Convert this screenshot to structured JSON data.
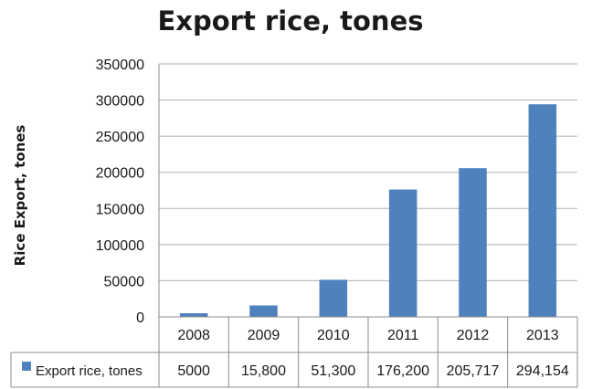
{
  "chart_data": {
    "type": "bar",
    "title": "Export rice, tones",
    "ylabel": "Rice Export, tones",
    "xlabel": "",
    "categories": [
      "2008",
      "2009",
      "2010",
      "2011",
      "2012",
      "2013"
    ],
    "values": [
      5000,
      15800,
      51300,
      176200,
      205717,
      294154
    ],
    "ylim": [
      0,
      350000
    ],
    "yticks": [
      "350000",
      "300000",
      "250000",
      "200000",
      "150000",
      "100000",
      "50000",
      "0"
    ],
    "grid": true,
    "series": [
      {
        "name": "Export rice, tones",
        "values": [
          5000,
          15800,
          51300,
          176200,
          205717,
          294154
        ],
        "color": "#4f81bd"
      }
    ],
    "data_table": {
      "legend_label": "Export rice, tones",
      "cells": [
        "5000",
        "15,800",
        "51,300",
        "176,200",
        "205,717",
        "294,154"
      ]
    }
  }
}
